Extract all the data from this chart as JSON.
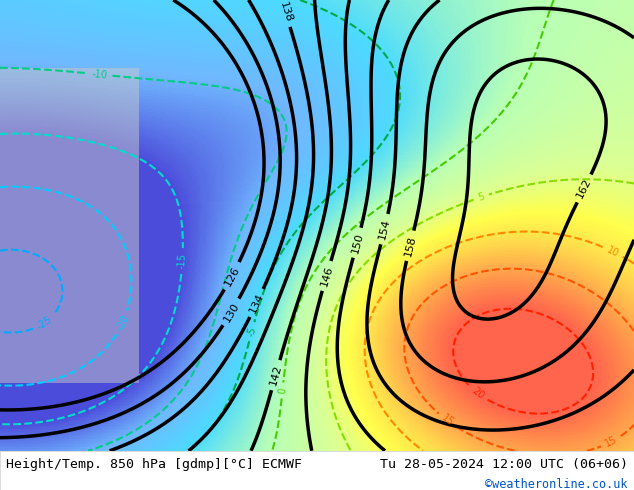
{
  "title_left": "Height/Temp. 850 hPa [gdmp][°C] ECMWF",
  "title_right": "Tu 28-05-2024 12:00 UTC (06+06)",
  "credit": "©weatheronline.co.uk",
  "bg_color": "#d0e8a0",
  "fig_width": 6.34,
  "fig_height": 4.9,
  "dpi": 100,
  "bottom_bar_color": "#f0f0f0",
  "bottom_bar_height": 0.08,
  "title_fontsize": 9.5,
  "credit_fontsize": 8.5,
  "credit_color": "#0055cc"
}
